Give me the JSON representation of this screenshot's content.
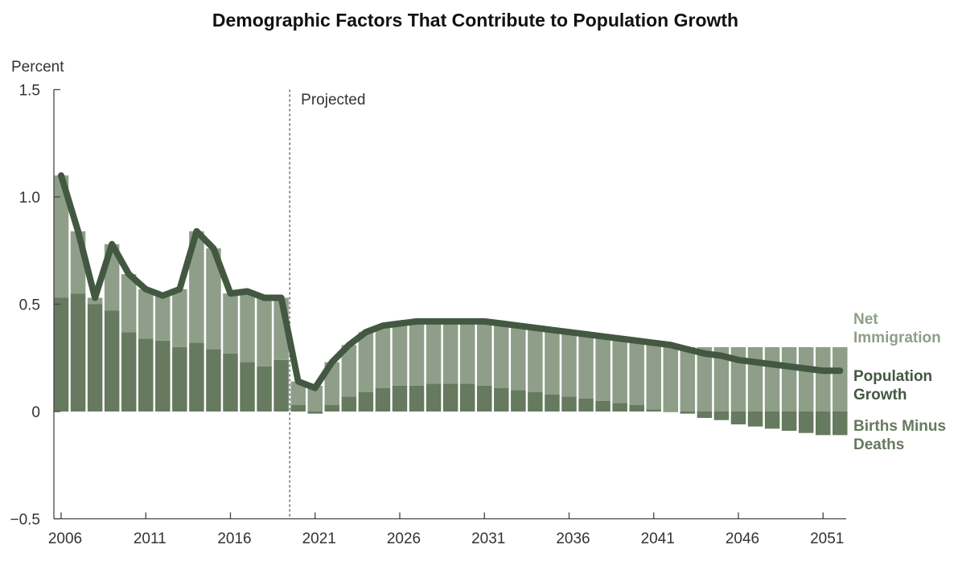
{
  "chart_data": {
    "type": "bar",
    "title": "Demographic Factors That Contribute to Population Growth",
    "ylabel": "Percent",
    "ylim": [
      -0.5,
      1.5
    ],
    "yticks": [
      {
        "value": 1.5,
        "label": "1.5"
      },
      {
        "value": 1.0,
        "label": "1.0"
      },
      {
        "value": 0.5,
        "label": "0.5"
      },
      {
        "value": 0,
        "label": "0"
      },
      {
        "value": -0.5,
        "label": "−0.5"
      }
    ],
    "xtick_labels": [
      "2006",
      "2011",
      "2016",
      "2021",
      "2026",
      "2031",
      "2036",
      "2041",
      "2046",
      "2051"
    ],
    "projection_label": "Projected",
    "projection_start": 2019.5,
    "grid": false,
    "legend_position": "right",
    "colors": {
      "net_immigration": "#8f9e88",
      "births_minus_deaths": "#657a5e",
      "population_growth": "#435841"
    },
    "years": [
      2006,
      2007,
      2008,
      2009,
      2010,
      2011,
      2012,
      2013,
      2014,
      2015,
      2016,
      2017,
      2018,
      2019,
      2020,
      2021,
      2022,
      2023,
      2024,
      2025,
      2026,
      2027,
      2028,
      2029,
      2030,
      2031,
      2032,
      2033,
      2034,
      2035,
      2036,
      2037,
      2038,
      2039,
      2040,
      2041,
      2042,
      2043,
      2044,
      2045,
      2046,
      2047,
      2048,
      2049,
      2050,
      2051,
      2052
    ],
    "series": [
      {
        "name": "Births Minus Deaths",
        "label_lines": [
          "Births Minus",
          "Deaths"
        ],
        "role": "bar-component",
        "values": [
          0.53,
          0.55,
          0.5,
          0.47,
          0.37,
          0.34,
          0.33,
          0.3,
          0.32,
          0.29,
          0.27,
          0.23,
          0.21,
          0.24,
          0.03,
          -0.01,
          0.03,
          0.07,
          0.09,
          0.11,
          0.12,
          0.12,
          0.13,
          0.13,
          0.13,
          0.12,
          0.11,
          0.1,
          0.09,
          0.08,
          0.07,
          0.06,
          0.05,
          0.04,
          0.03,
          0.01,
          0.0,
          -0.01,
          -0.03,
          -0.04,
          -0.06,
          -0.07,
          -0.08,
          -0.09,
          -0.1,
          -0.11,
          -0.11
        ]
      },
      {
        "name": "Net Immigration",
        "label_lines": [
          "Net",
          "Immigration"
        ],
        "role": "bar-component",
        "values": [
          0.57,
          0.29,
          0.03,
          0.31,
          0.27,
          0.23,
          0.21,
          0.27,
          0.52,
          0.47,
          0.28,
          0.33,
          0.32,
          0.29,
          0.11,
          0.12,
          0.2,
          0.24,
          0.28,
          0.29,
          0.29,
          0.3,
          0.29,
          0.29,
          0.29,
          0.3,
          0.3,
          0.3,
          0.3,
          0.3,
          0.3,
          0.3,
          0.3,
          0.3,
          0.3,
          0.3,
          0.3,
          0.3,
          0.3,
          0.3,
          0.3,
          0.3,
          0.3,
          0.3,
          0.3,
          0.3,
          0.3
        ]
      },
      {
        "name": "Population Growth",
        "label_lines": [
          "Population",
          "Growth"
        ],
        "role": "line",
        "values": [
          1.1,
          0.84,
          0.53,
          0.78,
          0.64,
          0.57,
          0.54,
          0.57,
          0.84,
          0.76,
          0.55,
          0.56,
          0.53,
          0.53,
          0.14,
          0.11,
          0.23,
          0.31,
          0.37,
          0.4,
          0.41,
          0.42,
          0.42,
          0.42,
          0.42,
          0.42,
          0.41,
          0.4,
          0.39,
          0.38,
          0.37,
          0.36,
          0.35,
          0.34,
          0.33,
          0.32,
          0.31,
          0.29,
          0.27,
          0.26,
          0.24,
          0.23,
          0.22,
          0.21,
          0.2,
          0.19,
          0.19
        ]
      }
    ]
  }
}
